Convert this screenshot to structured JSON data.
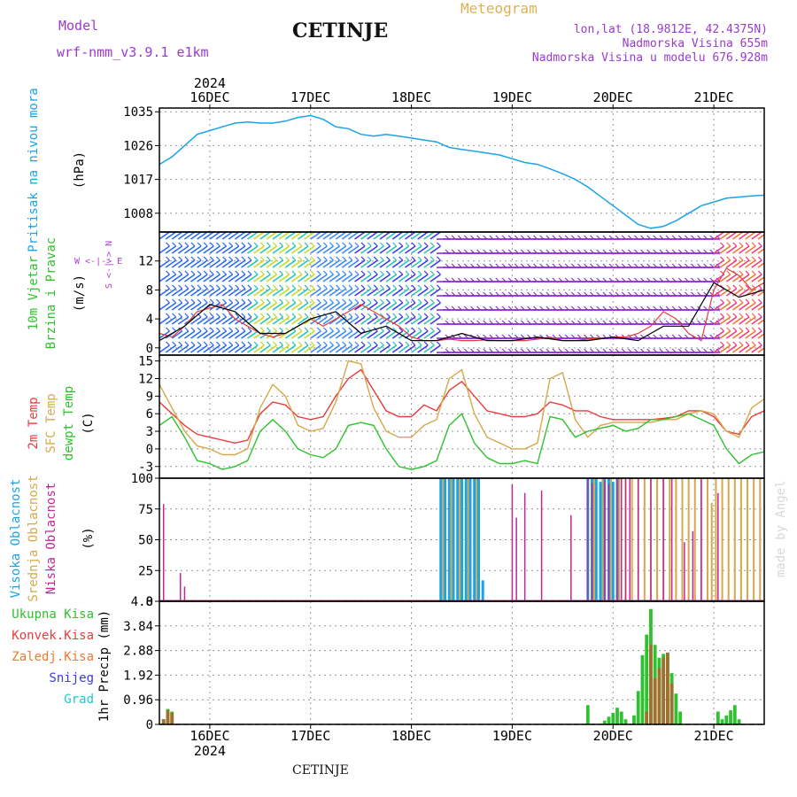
{
  "header": {
    "model_label": "Model",
    "model_name": "wrf-nmm_v3.9.1  e1km",
    "title": "CETINJE",
    "meteogram_label": "Meteogram",
    "lonlat": "lon,lat (18.9812E, 42.4375N)",
    "elevation": "Nadmorska Visina 655m",
    "model_elevation": "Nadmorska Visina u modelu 676.928m",
    "footer_title": "CETINJE",
    "credit": "made by Angel"
  },
  "colors": {
    "pressure": "#1aa3e8",
    "t2m": "#e83c3c",
    "sfc": "#d6a84a",
    "dewpt": "#2ec22e",
    "high_cloud": "#1aa3e8",
    "mid_cloud": "#d6a84a",
    "low_cloud": "#c0289a",
    "total_precip": "#2ec22e",
    "conv_precip": "#e83c3c",
    "frz_precip": "#f07830",
    "snow": "#3a3ae8",
    "graupel": "#20c8c8",
    "wind_label": "#2ec22e",
    "title_purple": "#9a3ad0",
    "meteogram_orange": "#e0b050",
    "compass_purple": "#b040d0"
  },
  "time_axis": {
    "year": "2024",
    "days": [
      "16DEC",
      "17DEC",
      "18DEC",
      "19DEC",
      "20DEC",
      "21DEC"
    ],
    "start_hour": -6,
    "end_hour": 138
  },
  "chart_data": [
    {
      "type": "line",
      "panel": "pressure",
      "ylabel_title": "Pritisak na nivou mora",
      "ylabel_unit": "(hPa)",
      "ylim": [
        1003,
        1036
      ],
      "yticks": [
        "1035",
        "1026",
        "1017",
        "1008"
      ],
      "grid": true,
      "series": [
        {
          "x": [
            -6,
            -3,
            0,
            3,
            6,
            9,
            12,
            15,
            18,
            21,
            24,
            27,
            30,
            33,
            36,
            39,
            42,
            45,
            48,
            51,
            54,
            57,
            60,
            63,
            66,
            69,
            72,
            75,
            78,
            81,
            84,
            87,
            90,
            93,
            96,
            99,
            102,
            105,
            108,
            111,
            114,
            117,
            120,
            123,
            126,
            129,
            132,
            135,
            138
          ],
          "y": [
            1021,
            1023,
            1026,
            1029,
            1030,
            1031,
            1032,
            1032.3,
            1032,
            1032,
            1032.5,
            1033.5,
            1034,
            1033,
            1031,
            1030.5,
            1029,
            1028.5,
            1029,
            1028.5,
            1028,
            1027.5,
            1027,
            1025.5,
            1025,
            1024.5,
            1024,
            1023.5,
            1022.5,
            1021.5,
            1021,
            1019.8,
            1018.5,
            1017,
            1015,
            1012.5,
            1010,
            1007.5,
            1005,
            1004,
            1004.5,
            1006,
            1008,
            1010,
            1011,
            1012,
            1012.3,
            1012.6,
            1012.8
          ]
        }
      ]
    },
    {
      "type": "line",
      "panel": "wind",
      "ylabel_title1": "10m Vjetar",
      "ylabel_title2": "Brzina i Pravac",
      "ylabel_unit": "(m/s)",
      "compass": {
        "north": "N",
        "south": "S",
        "west": "W",
        "east": "E"
      },
      "ylim": [
        -1,
        16
      ],
      "yticks": [
        "12",
        "8",
        "4",
        "0"
      ],
      "grid": true,
      "series": [
        {
          "x": [
            -6,
            -3,
            0,
            3,
            6,
            9,
            12,
            15,
            18,
            21,
            24,
            27,
            30,
            33,
            36,
            39,
            42,
            45,
            48,
            51,
            54,
            57,
            60,
            63,
            66,
            69,
            72,
            75,
            78,
            81,
            84,
            87,
            90,
            93,
            96,
            99,
            102,
            105,
            108,
            111,
            114,
            117,
            120,
            123,
            126,
            129,
            132,
            135,
            138
          ],
          "y": [
            2,
            1.5,
            3,
            5,
            5.5,
            6,
            4,
            3,
            2,
            1.5,
            2,
            3,
            4,
            3,
            4,
            5,
            6,
            5,
            4,
            3,
            1.5,
            1,
            1,
            1.2,
            1,
            1,
            1.1,
            1,
            1,
            1,
            1.2,
            1.5,
            1,
            1,
            1.2,
            1.3,
            1.5,
            1.5,
            2,
            3,
            5,
            4,
            2,
            1,
            8,
            11,
            10,
            8,
            9
          ]
        },
        {
          "x": [
            -6,
            0,
            6,
            12,
            18,
            24,
            30,
            36,
            42,
            48,
            54,
            60,
            66,
            72,
            78,
            84,
            90,
            96,
            102,
            108,
            114,
            120,
            126,
            132,
            138
          ],
          "y": [
            1,
            3,
            6,
            5,
            2,
            2,
            4,
            5,
            2,
            3,
            1,
            1,
            2,
            1,
            1,
            1.5,
            1,
            1,
            1.5,
            1,
            3,
            3,
            9,
            7,
            8
          ]
        }
      ]
    },
    {
      "type": "line",
      "panel": "temperature",
      "ylabel_title1": "2m Temp",
      "ylabel_title2": "SFC Temp",
      "ylabel_title3": "dewpt Temp",
      "ylabel_unit": "(C)",
      "ylim": [
        -5,
        16
      ],
      "yticks": [
        "15",
        "12",
        "9",
        "6",
        "3",
        "0",
        "-3"
      ],
      "grid": true,
      "series": [
        {
          "name": "2m Temp",
          "x": [
            -6,
            -3,
            0,
            3,
            6,
            9,
            12,
            15,
            18,
            21,
            24,
            27,
            30,
            33,
            36,
            39,
            42,
            45,
            48,
            51,
            54,
            57,
            60,
            63,
            66,
            69,
            72,
            75,
            78,
            81,
            84,
            87,
            90,
            93,
            96,
            99,
            102,
            105,
            108,
            111,
            114,
            117,
            120,
            123,
            126,
            129,
            132,
            135,
            138
          ],
          "y": [
            8,
            6,
            4,
            2.5,
            2,
            1.5,
            1,
            1.5,
            6,
            8,
            7.5,
            5.5,
            5,
            5.5,
            9,
            12,
            13.5,
            10,
            6.5,
            5.5,
            5.5,
            7.5,
            6.5,
            10,
            11.5,
            9,
            6.5,
            6,
            5.5,
            5.5,
            6,
            8,
            7.5,
            6.5,
            6.5,
            5.5,
            5,
            5,
            5,
            5,
            5.2,
            5.5,
            6.5,
            6.5,
            5.5,
            3,
            2.5,
            5.5,
            6.5
          ]
        },
        {
          "name": "SFC Temp",
          "x": [
            -6,
            -3,
            0,
            3,
            6,
            9,
            12,
            15,
            18,
            21,
            24,
            27,
            30,
            33,
            36,
            39,
            42,
            45,
            48,
            51,
            54,
            57,
            60,
            63,
            66,
            69,
            72,
            75,
            78,
            81,
            84,
            87,
            90,
            93,
            96,
            99,
            102,
            105,
            108,
            111,
            114,
            117,
            120,
            123,
            126,
            129,
            132,
            135,
            138
          ],
          "y": [
            11,
            7,
            3,
            0.5,
            0,
            -1,
            -1,
            0,
            7,
            11,
            9,
            4,
            3,
            3.5,
            8,
            15,
            14.5,
            7,
            3,
            2,
            2,
            4,
            5,
            12,
            13.5,
            6,
            2,
            1,
            0,
            0,
            1,
            12,
            13,
            5,
            2,
            4,
            4.5,
            4.5,
            4.5,
            4.5,
            5,
            5,
            6,
            6.5,
            6,
            3,
            2,
            7,
            8.5
          ]
        },
        {
          "name": "dewpt Temp",
          "x": [
            -6,
            -3,
            0,
            3,
            6,
            9,
            12,
            15,
            18,
            21,
            24,
            27,
            30,
            33,
            36,
            39,
            42,
            45,
            48,
            51,
            54,
            57,
            60,
            63,
            66,
            69,
            72,
            75,
            78,
            81,
            84,
            87,
            90,
            93,
            96,
            99,
            102,
            105,
            108,
            111,
            114,
            117,
            120,
            123,
            126,
            129,
            132,
            135,
            138
          ],
          "y": [
            4,
            5.5,
            2,
            -2,
            -2.5,
            -3.5,
            -3,
            -2,
            3,
            5,
            3,
            0,
            -1,
            -1.5,
            0,
            4,
            4.5,
            4,
            0,
            -3,
            -3.5,
            -3,
            -2,
            4,
            6,
            1,
            -1.5,
            -2.5,
            -2.5,
            -2,
            -2.5,
            5.5,
            5,
            2,
            3,
            3.5,
            4,
            3,
            3.5,
            5,
            5,
            5.5,
            6,
            5,
            4,
            0,
            -2.5,
            -1,
            -0.5
          ]
        }
      ]
    },
    {
      "type": "bar",
      "panel": "cloud",
      "ylabel_title1": "Visoka Oblacnost",
      "ylabel_title2": "Srednja Oblacnost",
      "ylabel_title3": "Niska Oblacnost",
      "ylabel_unit": "(%)",
      "ylim": [
        0,
        100
      ],
      "yticks": [
        "100",
        "75",
        "50",
        "25",
        "0"
      ],
      "grid": true,
      "series": [
        {
          "name": "Visoka Oblacnost",
          "x": [
            61,
            62,
            63,
            64,
            65,
            66,
            67,
            68,
            69,
            70,
            71,
            96,
            97,
            98,
            99,
            100,
            101,
            102,
            103
          ],
          "y": [
            100,
            100,
            100,
            100,
            100,
            100,
            100,
            100,
            100,
            100,
            17,
            100,
            100,
            100,
            97,
            100,
            100,
            97,
            100
          ]
        },
        {
          "name": "Srednja Oblacnost",
          "x": [
            61.5,
            63.5,
            65.5,
            67.5,
            69.5,
            97.5,
            99.5,
            101.5,
            103.5,
            105,
            106.5,
            108,
            109.5,
            111,
            112.5,
            114,
            115.5,
            117,
            118.5,
            120,
            121.5,
            123,
            124.5,
            125.5,
            126.5,
            128,
            129.5,
            131,
            132.5,
            134,
            135.5,
            137
          ],
          "y": [
            100,
            100,
            100,
            100,
            100,
            100,
            100,
            100,
            100,
            100,
            100,
            100,
            100,
            100,
            100,
            100,
            100,
            100,
            100,
            100,
            100,
            100,
            100,
            80,
            100,
            100,
            100,
            100,
            100,
            100,
            100,
            100
          ]
        },
        {
          "name": "Niska Oblacnost",
          "x": [
            -5,
            -1,
            0,
            78,
            79,
            81,
            85,
            92,
            96,
            97,
            100,
            101,
            103,
            104,
            105,
            106,
            108,
            111,
            114,
            116,
            119,
            121,
            123,
            127
          ],
          "y": [
            79,
            23,
            12,
            95,
            68,
            88,
            90,
            70,
            100,
            96,
            98,
            95,
            100,
            100,
            100,
            100,
            100,
            100,
            100,
            100,
            48,
            57,
            100,
            88
          ]
        }
      ]
    },
    {
      "type": "bar",
      "panel": "precip",
      "ylabel_title": "1hr Precip",
      "ylabel_unit": "(mm)",
      "legend": [
        "Ukupna  Kisa",
        "Konvek.Kisa",
        "Zaledj.Kisa",
        "Snijeg",
        "Grad"
      ],
      "ylim": [
        0,
        4.8
      ],
      "yticks": [
        "4.8",
        "3.84",
        "2.88",
        "1.92",
        "0.96",
        "0"
      ],
      "grid": true,
      "series": [
        {
          "name": "Ukupna  Kisa",
          "x": [
            -5,
            -4,
            -3,
            96,
            100,
            101,
            102,
            103,
            104,
            105,
            107,
            108,
            109,
            110,
            111,
            112,
            113,
            114,
            115,
            116,
            117,
            118,
            127,
            128,
            129,
            130,
            131,
            132
          ],
          "y": [
            0.2,
            0.6,
            0.5,
            0.75,
            0.15,
            0.3,
            0.45,
            0.65,
            0.5,
            0.2,
            0.35,
            1.3,
            2.7,
            3.5,
            4.5,
            3.1,
            2.6,
            2.75,
            2.8,
            2.0,
            1.2,
            0.5,
            0.5,
            0.2,
            0.35,
            0.55,
            0.75,
            0.2
          ]
        },
        {
          "name": "Konvek.Kisa",
          "x": [
            -5,
            -4,
            -3,
            110,
            111,
            112,
            113,
            114,
            115,
            116
          ],
          "y": [
            0.2,
            0.55,
            0.45,
            0.5,
            3.1,
            1.8,
            2.2,
            2.6,
            2.8,
            1.6
          ]
        }
      ]
    }
  ]
}
